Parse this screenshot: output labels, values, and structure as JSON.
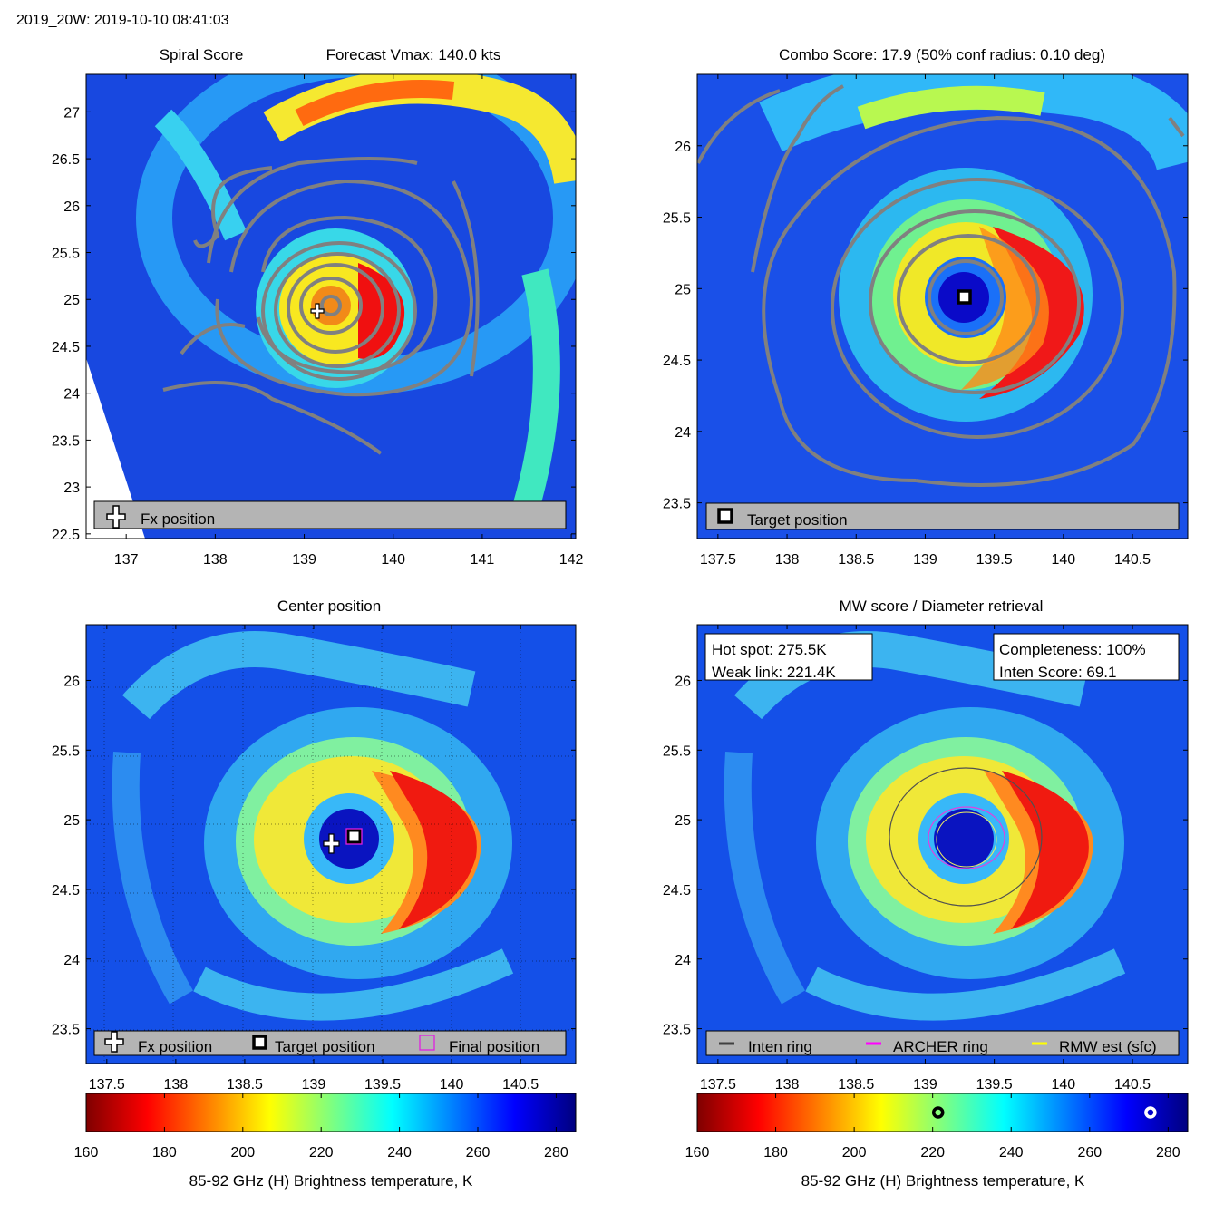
{
  "header": "2019_20W: 2019-10-10 08:41:03",
  "colorbar": {
    "stops": [
      "#7f0000",
      "#ff0000",
      "#ff7f00",
      "#ffff00",
      "#7fff7f",
      "#00ffff",
      "#007fff",
      "#0000ff",
      "#00007f"
    ],
    "min": 160,
    "max": 285,
    "ticks": [
      "160",
      "180",
      "200",
      "220",
      "240",
      "260",
      "280"
    ],
    "label": "85-92 GHz (H) Brightness temperature, K",
    "markers": [
      {
        "kind": "weak-link",
        "value": 221.4,
        "color": "#000000"
      },
      {
        "kind": "hot-spot",
        "value": 275.5,
        "color": "#ffffff"
      }
    ]
  },
  "chart_data": [
    {
      "id": "spiral",
      "type": "heatmap",
      "title_left": "Spiral Score",
      "title_right": "Forecast Vmax: 140.0 kts",
      "xlim": [
        136.55,
        142.05
      ],
      "ylim": [
        22.45,
        27.4
      ],
      "xticks": [
        "137",
        "138",
        "139",
        "140",
        "141",
        "142"
      ],
      "yticks": [
        "22.5",
        "23",
        "23.5",
        "24",
        "24.5",
        "25",
        "25.5",
        "26",
        "26.5",
        "27"
      ],
      "center": [
        139.27,
        24.9
      ],
      "fx_position": [
        139.15,
        24.85
      ],
      "legend": [
        {
          "symbol": "plus",
          "label": "Fx position"
        }
      ]
    },
    {
      "id": "combo",
      "type": "heatmap",
      "title": "Combo Score: 17.9  (50% conf radius: 0.10 deg)",
      "xlim": [
        137.35,
        140.9
      ],
      "ylim": [
        23.25,
        26.5
      ],
      "xticks": [
        "137.5",
        "138",
        "138.5",
        "139",
        "139.5",
        "140",
        "140.5"
      ],
      "yticks": [
        "23.5",
        "24",
        "24.5",
        "25",
        "25.5",
        "26"
      ],
      "target_position": [
        139.28,
        24.9
      ],
      "legend": [
        {
          "symbol": "square",
          "label": "Target position"
        }
      ]
    },
    {
      "id": "center",
      "type": "heatmap",
      "title": "Center position",
      "xlim": [
        137.35,
        140.9
      ],
      "ylim": [
        23.25,
        26.4
      ],
      "xticks": [
        "137.5",
        "138",
        "138.5",
        "139",
        "139.5",
        "140",
        "140.5"
      ],
      "yticks": [
        "23.5",
        "24",
        "24.5",
        "25",
        "25.5",
        "26"
      ],
      "fx_position": [
        139.13,
        24.85
      ],
      "target_position": [
        139.3,
        24.9
      ],
      "final_position": [
        139.3,
        24.9
      ],
      "legend": [
        {
          "symbol": "plus",
          "label": "Fx position"
        },
        {
          "symbol": "square",
          "label": "Target position"
        },
        {
          "symbol": "magenta-square",
          "label": "Final position"
        }
      ]
    },
    {
      "id": "mwscore",
      "type": "heatmap",
      "title": "MW score / Diameter retrieval",
      "xlim": [
        137.35,
        140.9
      ],
      "ylim": [
        23.25,
        26.4
      ],
      "xticks": [
        "137.5",
        "138",
        "138.5",
        "139",
        "139.5",
        "140",
        "140.5"
      ],
      "yticks": [
        "23.5",
        "24",
        "24.5",
        "25",
        "25.5",
        "26"
      ],
      "info_left": [
        "Hot spot: 275.5K",
        "Weak link: 221.4K"
      ],
      "info_right": [
        "Completeness: 100%",
        "Inten Score: 69.1"
      ],
      "legend": [
        {
          "symbol": "line",
          "color": "#404040",
          "label": "Inten ring"
        },
        {
          "symbol": "line",
          "color": "#ff00ff",
          "label": "ARCHER ring"
        },
        {
          "symbol": "line",
          "color": "#ffff00",
          "label": "RMW est (sfc)"
        }
      ]
    }
  ]
}
